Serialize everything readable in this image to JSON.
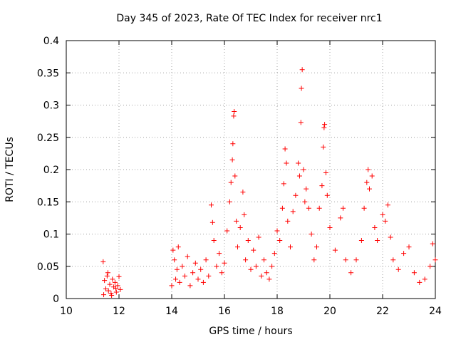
{
  "chart_data": {
    "type": "scatter",
    "title": "Day 345 of 2023, Rate Of TEC Index for receiver nrc1",
    "xlabel": "GPS time / hours",
    "ylabel": "ROTI / TECUs",
    "xlim": [
      10,
      24
    ],
    "ylim": [
      0,
      0.4
    ],
    "xticks": [
      10,
      12,
      14,
      16,
      18,
      20,
      22,
      24
    ],
    "yticks": [
      0,
      0.05,
      0.1,
      0.15,
      0.2,
      0.25,
      0.3,
      0.35,
      0.4
    ],
    "ytick_labels": [
      "0",
      "0.05",
      "0.1",
      "0.15",
      "0.2",
      "0.25",
      "0.3",
      "0.35",
      "0.4"
    ],
    "grid": true,
    "marker": "+",
    "color": "#ff0000",
    "series": [
      {
        "points": [
          [
            11.4,
            0.057
          ],
          [
            11.45,
            0.028
          ],
          [
            11.5,
            0.015
          ],
          [
            11.55,
            0.035
          ],
          [
            11.6,
            0.012
          ],
          [
            11.65,
            0.022
          ],
          [
            11.7,
            0.008
          ],
          [
            11.75,
            0.03
          ],
          [
            11.8,
            0.018
          ],
          [
            11.85,
            0.025
          ],
          [
            11.9,
            0.01
          ],
          [
            11.95,
            0.02
          ],
          [
            12.0,
            0.034
          ],
          [
            12.05,
            0.014
          ],
          [
            11.42,
            0.006
          ],
          [
            11.58,
            0.04
          ],
          [
            11.72,
            0.005
          ],
          [
            11.88,
            0.016
          ],
          [
            14.0,
            0.02
          ],
          [
            14.05,
            0.075
          ],
          [
            14.1,
            0.06
          ],
          [
            14.15,
            0.03
          ],
          [
            14.2,
            0.045
          ],
          [
            14.25,
            0.08
          ],
          [
            14.3,
            0.025
          ],
          [
            14.4,
            0.05
          ],
          [
            14.5,
            0.035
          ],
          [
            14.6,
            0.065
          ],
          [
            14.7,
            0.02
          ],
          [
            14.8,
            0.04
          ],
          [
            14.9,
            0.055
          ],
          [
            15.0,
            0.03
          ],
          [
            15.1,
            0.045
          ],
          [
            15.2,
            0.025
          ],
          [
            15.3,
            0.06
          ],
          [
            15.4,
            0.035
          ],
          [
            15.5,
            0.145
          ],
          [
            15.55,
            0.118
          ],
          [
            15.6,
            0.09
          ],
          [
            15.7,
            0.05
          ],
          [
            15.8,
            0.07
          ],
          [
            15.9,
            0.04
          ],
          [
            16.0,
            0.055
          ],
          [
            16.1,
            0.105
          ],
          [
            16.2,
            0.15
          ],
          [
            16.25,
            0.18
          ],
          [
            16.3,
            0.215
          ],
          [
            16.32,
            0.24
          ],
          [
            16.35,
            0.283
          ],
          [
            16.37,
            0.29
          ],
          [
            16.4,
            0.19
          ],
          [
            16.45,
            0.12
          ],
          [
            16.5,
            0.08
          ],
          [
            16.6,
            0.11
          ],
          [
            16.7,
            0.165
          ],
          [
            16.75,
            0.13
          ],
          [
            16.8,
            0.06
          ],
          [
            16.9,
            0.09
          ],
          [
            17.0,
            0.045
          ],
          [
            17.1,
            0.075
          ],
          [
            17.2,
            0.05
          ],
          [
            17.3,
            0.095
          ],
          [
            17.4,
            0.035
          ],
          [
            17.5,
            0.06
          ],
          [
            17.6,
            0.04
          ],
          [
            17.7,
            0.03
          ],
          [
            17.8,
            0.05
          ],
          [
            17.9,
            0.07
          ],
          [
            18.0,
            0.105
          ],
          [
            18.1,
            0.09
          ],
          [
            18.2,
            0.14
          ],
          [
            18.25,
            0.178
          ],
          [
            18.3,
            0.232
          ],
          [
            18.35,
            0.21
          ],
          [
            18.4,
            0.12
          ],
          [
            18.5,
            0.08
          ],
          [
            18.6,
            0.135
          ],
          [
            18.7,
            0.16
          ],
          [
            18.8,
            0.21
          ],
          [
            18.85,
            0.19
          ],
          [
            18.9,
            0.273
          ],
          [
            18.92,
            0.326
          ],
          [
            18.95,
            0.355
          ],
          [
            19.0,
            0.2
          ],
          [
            19.05,
            0.15
          ],
          [
            19.1,
            0.17
          ],
          [
            19.2,
            0.14
          ],
          [
            19.3,
            0.1
          ],
          [
            19.4,
            0.06
          ],
          [
            19.5,
            0.08
          ],
          [
            19.6,
            0.14
          ],
          [
            19.7,
            0.175
          ],
          [
            19.75,
            0.235
          ],
          [
            19.78,
            0.265
          ],
          [
            19.8,
            0.27
          ],
          [
            19.85,
            0.195
          ],
          [
            19.9,
            0.16
          ],
          [
            20.0,
            0.11
          ],
          [
            20.2,
            0.075
          ],
          [
            20.4,
            0.125
          ],
          [
            20.5,
            0.14
          ],
          [
            20.6,
            0.06
          ],
          [
            20.8,
            0.04
          ],
          [
            21.0,
            0.06
          ],
          [
            21.2,
            0.09
          ],
          [
            21.3,
            0.14
          ],
          [
            21.4,
            0.18
          ],
          [
            21.45,
            0.2
          ],
          [
            21.5,
            0.17
          ],
          [
            21.6,
            0.19
          ],
          [
            21.7,
            0.11
          ],
          [
            21.8,
            0.09
          ],
          [
            22.0,
            0.13
          ],
          [
            22.1,
            0.12
          ],
          [
            22.2,
            0.145
          ],
          [
            22.3,
            0.095
          ],
          [
            22.4,
            0.06
          ],
          [
            22.6,
            0.045
          ],
          [
            22.8,
            0.07
          ],
          [
            23.0,
            0.08
          ],
          [
            23.2,
            0.04
          ],
          [
            23.4,
            0.025
          ],
          [
            23.6,
            0.03
          ],
          [
            23.8,
            0.05
          ],
          [
            23.9,
            0.085
          ],
          [
            24.0,
            0.06
          ]
        ]
      }
    ]
  }
}
